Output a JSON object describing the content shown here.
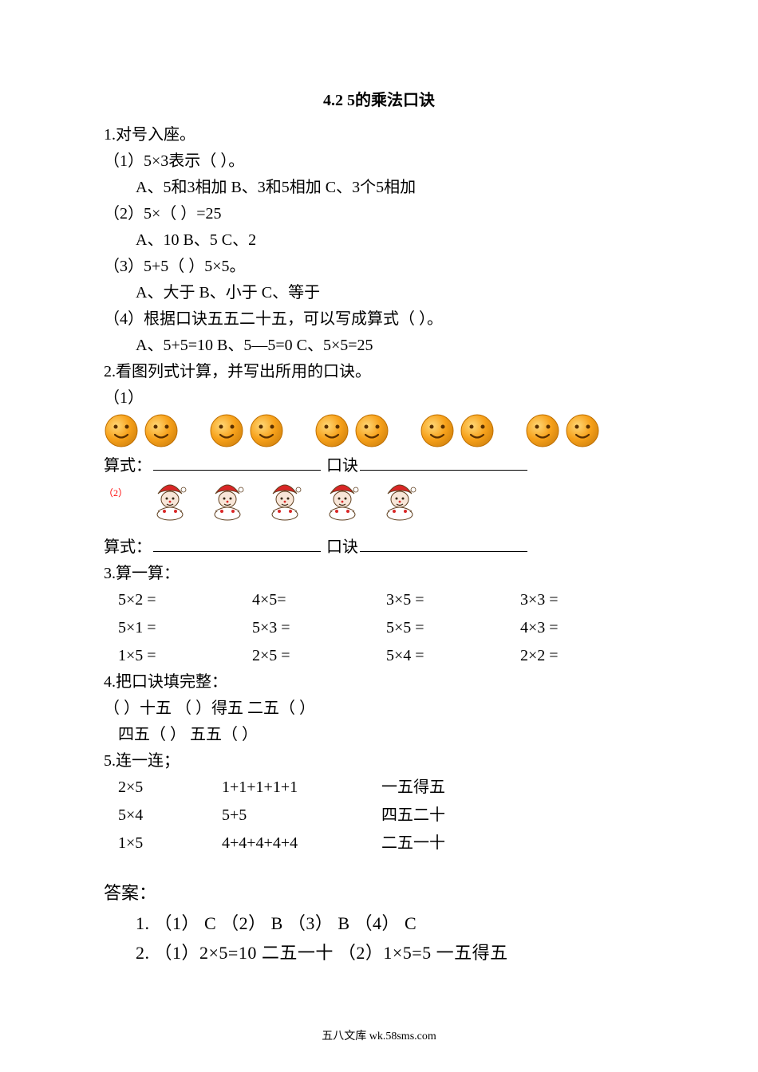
{
  "title": "4.2  5的乘法口诀",
  "q1": {
    "heading": "1.对号入座。",
    "p1": "（1）5×3表示（   ）。",
    "p1opts": "A、5和3相加      B、3和5相加      C、3个5相加",
    "p2": "（2）5×（    ）=25",
    "p2opts": "A、10       B、5      C、2",
    "p3": "（3）5+5（  ）5×5。",
    "p3opts": "A、大于     B、小于    C、等于",
    "p4": "（4）根据口诀五五二十五，可以写成算式（     ）。",
    "p4opts": "A、5+5=10   B、5—5=0   C、5×5=25"
  },
  "q2": {
    "heading": "2.看图列式计算，并写出所用的口诀。",
    "sub1": "（1）",
    "sub2label": "（2）",
    "formula_label": "算式：",
    "koujue_label": "口诀",
    "smiley_pair_count": 5,
    "smiley_pair_gap": 32,
    "clown_count": 5,
    "smiley_color": "#f7a11a",
    "smiley_stroke": "#c07000",
    "clown_hat": "#d92626",
    "clown_face": "#f8e6d8",
    "clown_outfit": "#ffffff",
    "clown_outline": "#604020"
  },
  "q3": {
    "heading": "3.算一算：",
    "rows": [
      [
        "5×2 =",
        "4×5=",
        "3×5 =",
        "3×3 ="
      ],
      [
        "5×1 =",
        "5×3 =",
        "5×5 =",
        "4×3 ="
      ],
      [
        "1×5 =",
        "2×5 =",
        "5×4 =",
        "2×2 ="
      ]
    ]
  },
  "q4": {
    "heading": "4.把口诀填完整：",
    "line1": "（      ）十五     （     ）得五      二五（       ）",
    "line2": "四五（      ）     五五（      ）"
  },
  "q5": {
    "heading": "5.连一连；",
    "rows": [
      [
        "2×5",
        "1+1+1+1+1",
        "一五得五"
      ],
      [
        "5×4",
        "5+5",
        "四五二十"
      ],
      [
        "1×5",
        "4+4+4+4+4",
        "二五一十"
      ]
    ]
  },
  "answers": {
    "heading": "答案：",
    "l1": "1. （1） C （2） B （3） B （4） C",
    "l2": "2. （1）2×5=10  二五一十  （2）1×5=5  一五得五"
  },
  "footer": "五八文库 wk.58sms.com"
}
